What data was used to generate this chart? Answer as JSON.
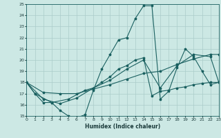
{
  "xlabel": "Humidex (Indice chaleur)",
  "xlim": [
    0,
    23
  ],
  "ylim": [
    15,
    25
  ],
  "xticks": [
    0,
    1,
    2,
    3,
    4,
    5,
    6,
    7,
    8,
    9,
    10,
    11,
    12,
    13,
    14,
    15,
    16,
    17,
    18,
    19,
    20,
    21,
    22,
    23
  ],
  "yticks": [
    15,
    16,
    17,
    18,
    19,
    20,
    21,
    22,
    23,
    24,
    25
  ],
  "bg_color": "#cce8e4",
  "grid_color": "#aaccca",
  "line_color": "#1a6060",
  "line1_x": [
    0,
    1,
    2,
    3,
    4,
    5,
    6,
    7,
    8,
    9,
    10,
    11,
    12,
    13,
    14,
    15,
    16,
    17,
    18,
    19,
    20,
    21,
    22,
    23
  ],
  "line1_y": [
    18,
    17,
    16.2,
    16.2,
    15.5,
    15.0,
    14.85,
    15.1,
    17.3,
    19.2,
    20.5,
    21.8,
    22.0,
    23.7,
    24.85,
    24.85,
    16.5,
    17.2,
    19.3,
    21.0,
    20.3,
    19.0,
    17.8,
    18.0
  ],
  "line2_x": [
    0,
    2,
    4,
    6,
    8,
    10,
    12,
    14,
    16,
    18,
    20,
    22,
    23
  ],
  "line2_y": [
    18,
    17.1,
    17.0,
    17.0,
    17.4,
    17.8,
    18.3,
    18.8,
    19.0,
    19.6,
    20.1,
    20.5,
    20.5
  ],
  "line3_x": [
    0,
    2,
    4,
    6,
    8,
    10,
    12,
    14,
    16,
    18,
    20,
    22,
    23
  ],
  "line3_y": [
    18,
    16.5,
    16.1,
    16.6,
    17.5,
    18.2,
    19.2,
    20.0,
    17.5,
    19.5,
    20.5,
    20.3,
    18.0
  ],
  "line4_x": [
    0,
    1,
    3,
    5,
    7,
    8,
    9,
    10,
    11,
    12,
    13,
    14,
    15,
    16,
    17,
    18,
    19,
    20,
    21,
    22,
    23
  ],
  "line4_y": [
    18,
    17.0,
    16.2,
    16.5,
    17.3,
    17.5,
    18.0,
    18.5,
    19.2,
    19.5,
    20.0,
    20.2,
    16.8,
    17.2,
    17.3,
    17.5,
    17.6,
    17.8,
    17.9,
    18.0,
    18.0
  ]
}
